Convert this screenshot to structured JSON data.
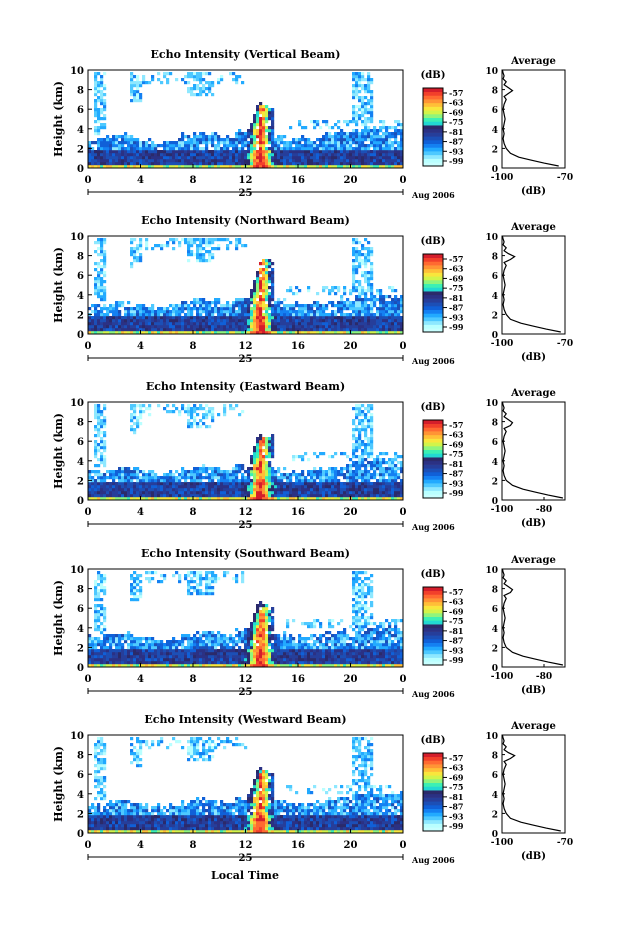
{
  "figure": {
    "xlabel_bottom": "Local Time",
    "date_label": "Aug 2006",
    "day_label": "25"
  },
  "colorbar": {
    "unit": "(dB)",
    "ticks": [
      "-57",
      "-63",
      "-69",
      "-75",
      "-81",
      "-87",
      "-93",
      "-99"
    ],
    "colors": [
      "#c8ffff",
      "#b9ffff",
      "#8ee8ff",
      "#4ec9ff",
      "#22aaff",
      "#1480f2",
      "#1060d8",
      "#1c4fb6",
      "#263e9a",
      "#2b3184",
      "#2b2a6a",
      "#22d9d2",
      "#3cf0b4",
      "#8ff57c",
      "#d2f44a",
      "#f9e63c",
      "#ffbf37",
      "#ff9435",
      "#ff6a31",
      "#f2402b",
      "#d41e2b"
    ]
  },
  "chart_data": [
    {
      "type": "heatmap",
      "title": "Echo Intensity (Vertical Beam)",
      "ylabel": "Height (km)",
      "xticks": [
        "0",
        "4",
        "8",
        "12",
        "16",
        "20",
        "0"
      ],
      "yticks": [
        "0",
        "2",
        "4",
        "6",
        "8",
        "10"
      ],
      "xlim": [
        0,
        24
      ],
      "ylim": [
        0,
        10
      ],
      "cloud_base_km": [
        3.2,
        3.4,
        3.6,
        3.3,
        3.0,
        2.8,
        3.1,
        3.5,
        3.8,
        3.6,
        3.4,
        3.9,
        4.2,
        6.5,
        3.3,
        3.0,
        3.2,
        3.4,
        3.6,
        3.9,
        4.1,
        4.3,
        4.4,
        4.2,
        4.0
      ],
      "average_profile": {
        "title": "Average",
        "xlabel": "(dB)",
        "xticks": [
          "-100",
          "-70"
        ],
        "xlim": [
          -100,
          -70
        ],
        "yticks": [
          "0",
          "2",
          "4",
          "6",
          "8",
          "10"
        ],
        "ylim": [
          0,
          10
        ],
        "x": [
          -73,
          -80,
          -86,
          -92,
          -96,
          -98,
          -99,
          -99.5,
          -99,
          -99.5,
          -99,
          -98.5,
          -99,
          -99.5,
          -99,
          -98,
          -99,
          -97,
          -95,
          -97,
          -99,
          -98,
          -99.5,
          -99,
          -99.5,
          -99.8
        ],
        "y": [
          0.2,
          0.5,
          0.8,
          1.1,
          1.5,
          2.0,
          2.5,
          3.0,
          3.5,
          4.0,
          4.5,
          5.0,
          5.5,
          6.0,
          6.5,
          7.0,
          7.3,
          7.6,
          7.9,
          8.2,
          8.5,
          8.8,
          9.1,
          9.4,
          9.7,
          10.0
        ]
      }
    },
    {
      "type": "heatmap",
      "title": "Echo Intensity (Northward Beam)",
      "ylabel": "Height (km)",
      "xticks": [
        "0",
        "4",
        "8",
        "12",
        "16",
        "20",
        "0"
      ],
      "yticks": [
        "0",
        "2",
        "4",
        "6",
        "8",
        "10"
      ],
      "xlim": [
        0,
        24
      ],
      "ylim": [
        0,
        10
      ],
      "cloud_base_km": [
        3.0,
        3.3,
        3.5,
        3.2,
        3.0,
        2.9,
        3.2,
        3.4,
        3.7,
        3.6,
        3.3,
        3.8,
        4.0,
        7.5,
        3.6,
        3.3,
        3.2,
        3.4,
        3.5,
        3.8,
        4.0,
        4.1,
        4.2,
        4.0,
        3.8
      ],
      "average_profile": {
        "title": "Average",
        "xlabel": "(dB)",
        "xticks": [
          "-100",
          "-70"
        ],
        "xlim": [
          -100,
          -70
        ],
        "yticks": [
          "0",
          "2",
          "4",
          "6",
          "8",
          "10"
        ],
        "ylim": [
          0,
          10
        ],
        "x": [
          -72,
          -79,
          -85,
          -91,
          -96,
          -98,
          -99,
          -99.5,
          -99,
          -99.5,
          -99,
          -98.5,
          -99,
          -99.5,
          -99,
          -98,
          -99,
          -96,
          -94,
          -97,
          -99,
          -98,
          -99.5,
          -99,
          -99.5,
          -99.8
        ],
        "y": [
          0.2,
          0.5,
          0.8,
          1.1,
          1.5,
          2.0,
          2.5,
          3.0,
          3.5,
          4.0,
          4.5,
          5.0,
          5.5,
          6.0,
          6.5,
          7.0,
          7.3,
          7.6,
          7.9,
          8.2,
          8.5,
          8.8,
          9.1,
          9.4,
          9.7,
          10.0
        ]
      }
    },
    {
      "type": "heatmap",
      "title": "Echo Intensity (Eastward Beam)",
      "ylabel": "Height (km)",
      "xticks": [
        "0",
        "4",
        "8",
        "12",
        "16",
        "20",
        "0"
      ],
      "yticks": [
        "0",
        "2",
        "4",
        "6",
        "8",
        "10"
      ],
      "xlim": [
        0,
        24
      ],
      "ylim": [
        0,
        10
      ],
      "cloud_base_km": [
        3.1,
        3.3,
        3.5,
        3.3,
        3.1,
        2.9,
        3.0,
        3.4,
        3.6,
        3.5,
        3.3,
        3.7,
        4.0,
        6.6,
        3.4,
        3.1,
        3.1,
        3.3,
        3.5,
        3.8,
        4.1,
        4.3,
        4.3,
        4.1,
        3.9
      ],
      "average_profile": {
        "title": "Average",
        "xlabel": "(dB)",
        "xticks": [
          "-100",
          "-80"
        ],
        "xlim": [
          -100,
          -70
        ],
        "yticks": [
          "0",
          "2",
          "4",
          "6",
          "8",
          "10"
        ],
        "ylim": [
          0,
          10
        ],
        "x": [
          -71,
          -78,
          -84,
          -90,
          -95,
          -98,
          -99,
          -99.5,
          -99,
          -99.5,
          -99,
          -98.5,
          -99,
          -99.5,
          -99,
          -98,
          -99,
          -96,
          -95,
          -97,
          -99,
          -98,
          -99.5,
          -99,
          -99.5,
          -99.8
        ],
        "y": [
          0.2,
          0.5,
          0.8,
          1.1,
          1.5,
          2.0,
          2.5,
          3.0,
          3.5,
          4.0,
          4.5,
          5.0,
          5.5,
          6.0,
          6.5,
          7.0,
          7.3,
          7.6,
          7.9,
          8.2,
          8.5,
          8.8,
          9.1,
          9.4,
          9.7,
          10.0
        ]
      }
    },
    {
      "type": "heatmap",
      "title": "Echo Intensity (Southward Beam)",
      "ylabel": "Height (km)",
      "xticks": [
        "0",
        "4",
        "8",
        "12",
        "16",
        "20",
        "0"
      ],
      "yticks": [
        "0",
        "2",
        "4",
        "6",
        "8",
        "10"
      ],
      "xlim": [
        0,
        24
      ],
      "ylim": [
        0,
        10
      ],
      "cloud_base_km": [
        3.2,
        3.4,
        3.6,
        3.4,
        3.2,
        3.0,
        3.1,
        3.5,
        3.7,
        3.6,
        3.4,
        3.9,
        4.1,
        6.4,
        3.5,
        3.2,
        3.3,
        3.5,
        3.6,
        3.9,
        4.2,
        4.3,
        4.4,
        4.2,
        4.0
      ],
      "average_profile": {
        "title": "Average",
        "xlabel": "(dB)",
        "xticks": [
          "-100",
          "-80"
        ],
        "xlim": [
          -100,
          -70
        ],
        "yticks": [
          "0",
          "2",
          "4",
          "6",
          "8",
          "10"
        ],
        "ylim": [
          0,
          10
        ],
        "x": [
          -71,
          -78,
          -84,
          -90,
          -95,
          -98,
          -99,
          -99.5,
          -99,
          -99.5,
          -99,
          -98.5,
          -99,
          -99.5,
          -99,
          -98,
          -99,
          -96,
          -95,
          -97,
          -99,
          -98,
          -99.5,
          -99,
          -99.5,
          -99.8
        ],
        "y": [
          0.2,
          0.5,
          0.8,
          1.1,
          1.5,
          2.0,
          2.5,
          3.0,
          3.5,
          4.0,
          4.5,
          5.0,
          5.5,
          6.0,
          6.5,
          7.0,
          7.3,
          7.6,
          7.9,
          8.2,
          8.5,
          8.8,
          9.1,
          9.4,
          9.7,
          10.0
        ]
      }
    },
    {
      "type": "heatmap",
      "title": "Echo Intensity (Westward Beam)",
      "ylabel": "Height (km)",
      "xticks": [
        "0",
        "4",
        "8",
        "12",
        "16",
        "20",
        "0"
      ],
      "yticks": [
        "0",
        "2",
        "4",
        "6",
        "8",
        "10"
      ],
      "xlim": [
        0,
        24
      ],
      "ylim": [
        0,
        10
      ],
      "cloud_base_km": [
        3.1,
        3.3,
        3.5,
        3.2,
        3.0,
        2.9,
        3.1,
        3.4,
        3.7,
        3.5,
        3.3,
        3.8,
        4.0,
        6.5,
        3.4,
        3.1,
        3.2,
        3.4,
        3.5,
        3.8,
        4.1,
        4.2,
        4.3,
        4.1,
        3.9
      ],
      "average_profile": {
        "title": "Average",
        "xlabel": "(dB)",
        "xticks": [
          "-100",
          "-70"
        ],
        "xlim": [
          -100,
          -70
        ],
        "yticks": [
          "0",
          "2",
          "4",
          "6",
          "8",
          "10"
        ],
        "ylim": [
          0,
          10
        ],
        "x": [
          -72,
          -79,
          -85,
          -91,
          -96,
          -98,
          -99,
          -99.5,
          -99,
          -99.5,
          -99,
          -98.5,
          -99,
          -99.5,
          -99,
          -98,
          -99,
          -96,
          -94,
          -97,
          -99,
          -98,
          -99.5,
          -99,
          -99.5,
          -99.8
        ],
        "y": [
          0.2,
          0.5,
          0.8,
          1.1,
          1.5,
          2.0,
          2.5,
          3.0,
          3.5,
          4.0,
          4.5,
          5.0,
          5.5,
          6.0,
          6.5,
          7.0,
          7.3,
          7.6,
          7.9,
          8.2,
          8.5,
          8.8,
          9.1,
          9.4,
          9.7,
          10.0
        ]
      }
    }
  ]
}
